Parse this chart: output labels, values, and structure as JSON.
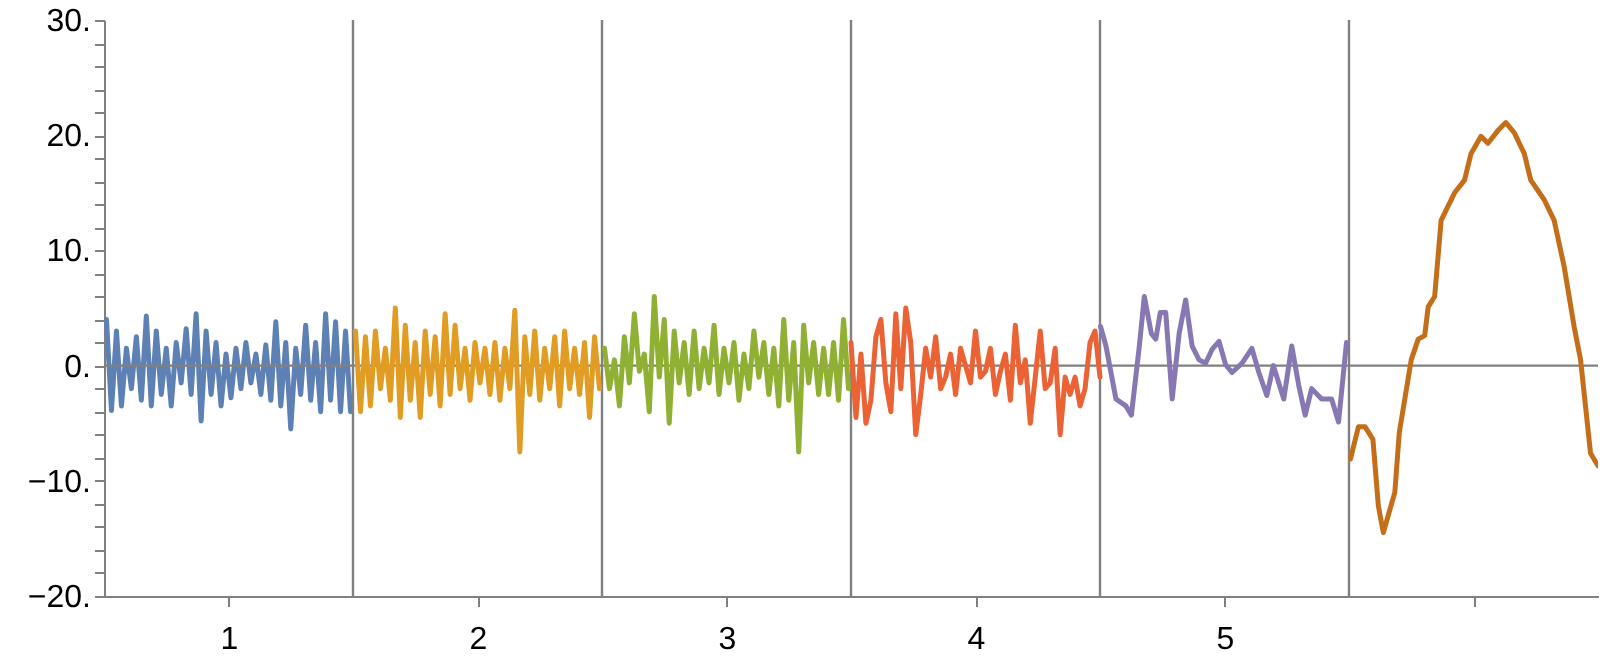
{
  "chart_data": {
    "type": "line",
    "xlim": [
      0,
      6
    ],
    "xticks": [
      {
        "value": 0.5,
        "label": "1"
      },
      {
        "value": 1.5,
        "label": "2"
      },
      {
        "value": 2.5,
        "label": "3"
      },
      {
        "value": 3.5,
        "label": "4"
      },
      {
        "value": 4.5,
        "label": "5"
      },
      {
        "value": 5.5,
        "label": null
      }
    ],
    "ylim": [
      -20,
      30
    ],
    "yticks": [
      {
        "value": -20,
        "label": "−20."
      },
      {
        "value": -18,
        "label": null
      },
      {
        "value": -16,
        "label": null
      },
      {
        "value": -14,
        "label": null
      },
      {
        "value": -12,
        "label": null
      },
      {
        "value": -10,
        "label": "−10."
      },
      {
        "value": -8,
        "label": null
      },
      {
        "value": -6,
        "label": null
      },
      {
        "value": -4,
        "label": null
      },
      {
        "value": -2,
        "label": null
      },
      {
        "value": 0,
        "label": "0."
      },
      {
        "value": 2,
        "label": null
      },
      {
        "value": 4,
        "label": null
      },
      {
        "value": 6,
        "label": null
      },
      {
        "value": 8,
        "label": null
      },
      {
        "value": 10,
        "label": "10."
      },
      {
        "value": 12,
        "label": null
      },
      {
        "value": 14,
        "label": null
      },
      {
        "value": 16,
        "label": null
      },
      {
        "value": 18,
        "label": null
      },
      {
        "value": 20,
        "label": "20."
      },
      {
        "value": 22,
        "label": null
      },
      {
        "value": 24,
        "label": null
      },
      {
        "value": 26,
        "label": null
      },
      {
        "value": 28,
        "label": null
      },
      {
        "value": 30,
        "label": "30."
      }
    ],
    "grid": false,
    "line_style": "solid",
    "marker": "none",
    "ref_lines": [
      {
        "axis": "y",
        "value": 0,
        "color": "#808080"
      },
      {
        "axis": "x",
        "value": 1,
        "color": "#808080"
      },
      {
        "axis": "x",
        "value": 2,
        "color": "#808080"
      },
      {
        "axis": "x",
        "value": 3,
        "color": "#808080"
      },
      {
        "axis": "x",
        "value": 4,
        "color": "#808080"
      },
      {
        "axis": "x",
        "value": 5,
        "color": "#808080"
      }
    ],
    "series": [
      {
        "color": "#5e81b5",
        "x": [
          0.01,
          0.03,
          0.05,
          0.07,
          0.09,
          0.11,
          0.13,
          0.15,
          0.17,
          0.19,
          0.21,
          0.23,
          0.25,
          0.27,
          0.29,
          0.31,
          0.33,
          0.35,
          0.37,
          0.39,
          0.41,
          0.43,
          0.45,
          0.47,
          0.49,
          0.51,
          0.53,
          0.55,
          0.57,
          0.59,
          0.61,
          0.63,
          0.65,
          0.67,
          0.69,
          0.71,
          0.73,
          0.75,
          0.77,
          0.79,
          0.81,
          0.83,
          0.85,
          0.87,
          0.89,
          0.91,
          0.93,
          0.95,
          0.97,
          0.99
        ],
        "values": [
          4.0,
          -3.9,
          3.0,
          -3.5,
          1.5,
          -2.0,
          2.5,
          -3.0,
          4.3,
          -3.5,
          3.0,
          -2.5,
          1.5,
          -3.5,
          2.0,
          -1.5,
          3.2,
          -2.5,
          4.5,
          -4.8,
          3.0,
          -2.5,
          2.0,
          -3.5,
          1.0,
          -2.8,
          1.5,
          -2.0,
          2.0,
          -1.5,
          1.0,
          -2.5,
          1.8,
          -3.0,
          3.8,
          -3.5,
          2.0,
          -5.5,
          1.5,
          -2.5,
          3.5,
          -3.0,
          2.0,
          -4.0,
          4.5,
          -3.0,
          3.8,
          -4.0,
          3.0,
          -4.0
        ]
      },
      {
        "color": "#e19c24",
        "x": [
          1.01,
          1.03,
          1.05,
          1.07,
          1.09,
          1.11,
          1.13,
          1.15,
          1.17,
          1.19,
          1.21,
          1.23,
          1.25,
          1.27,
          1.29,
          1.31,
          1.33,
          1.35,
          1.37,
          1.39,
          1.41,
          1.43,
          1.45,
          1.47,
          1.49,
          1.51,
          1.53,
          1.55,
          1.57,
          1.59,
          1.61,
          1.63,
          1.65,
          1.67,
          1.69,
          1.71,
          1.73,
          1.75,
          1.77,
          1.79,
          1.81,
          1.83,
          1.85,
          1.87,
          1.89,
          1.91,
          1.93,
          1.95,
          1.97,
          1.99
        ],
        "values": [
          3.0,
          -4.0,
          2.5,
          -3.5,
          3.0,
          -2.0,
          1.5,
          -3.0,
          5.0,
          -4.5,
          3.5,
          -3.0,
          2.0,
          -4.5,
          3.0,
          -2.5,
          2.5,
          -3.5,
          4.5,
          -2.5,
          3.5,
          -2.0,
          1.5,
          -3.0,
          2.0,
          -1.5,
          1.5,
          -2.5,
          2.0,
          -3.0,
          1.5,
          -2.0,
          4.8,
          -7.5,
          2.5,
          -2.5,
          3.0,
          -3.0,
          1.5,
          -2.0,
          2.5,
          -3.5,
          3.0,
          -2.0,
          1.5,
          -2.5,
          2.0,
          -4.5,
          2.5,
          -2.0
        ]
      },
      {
        "color": "#8fb032",
        "x": [
          2.01,
          2.03,
          2.05,
          2.07,
          2.09,
          2.11,
          2.13,
          2.15,
          2.17,
          2.19,
          2.21,
          2.23,
          2.25,
          2.27,
          2.29,
          2.31,
          2.33,
          2.35,
          2.37,
          2.39,
          2.41,
          2.43,
          2.45,
          2.47,
          2.49,
          2.51,
          2.53,
          2.55,
          2.57,
          2.59,
          2.61,
          2.63,
          2.65,
          2.67,
          2.69,
          2.71,
          2.73,
          2.75,
          2.77,
          2.79,
          2.81,
          2.83,
          2.85,
          2.87,
          2.89,
          2.91,
          2.93,
          2.95,
          2.97,
          2.99
        ],
        "values": [
          1.5,
          -2.0,
          0.5,
          -3.5,
          2.5,
          -1.5,
          4.5,
          -0.5,
          1.0,
          -4.0,
          6.0,
          -1.0,
          4.0,
          -5.0,
          3.0,
          -1.5,
          2.0,
          -2.5,
          3.0,
          -2.0,
          1.5,
          -1.5,
          3.5,
          -2.5,
          1.5,
          -1.5,
          2.0,
          -3.0,
          1.0,
          -2.0,
          3.0,
          -1.0,
          2.0,
          -2.5,
          1.5,
          -3.5,
          4.0,
          -3.0,
          2.0,
          -7.5,
          3.5,
          -1.5,
          2.0,
          -2.5,
          1.5,
          -2.5,
          2.0,
          -3.0,
          4.0,
          -2.0
        ]
      },
      {
        "color": "#eb6235",
        "x": [
          3.0,
          3.02,
          3.04,
          3.06,
          3.08,
          3.1,
          3.12,
          3.14,
          3.16,
          3.18,
          3.2,
          3.22,
          3.24,
          3.26,
          3.28,
          3.3,
          3.32,
          3.34,
          3.36,
          3.38,
          3.4,
          3.42,
          3.44,
          3.46,
          3.48,
          3.5,
          3.52,
          3.54,
          3.56,
          3.58,
          3.6,
          3.62,
          3.64,
          3.66,
          3.68,
          3.7,
          3.72,
          3.74,
          3.76,
          3.78,
          3.8,
          3.82,
          3.84,
          3.86,
          3.88,
          3.9,
          3.92,
          3.94,
          3.96,
          3.98,
          4.0
        ],
        "values": [
          2.0,
          -4.5,
          1.0,
          -5.0,
          -3.0,
          2.5,
          4.0,
          -1.5,
          -4.0,
          4.5,
          -2.0,
          5.0,
          2.0,
          -6.0,
          -2.5,
          1.5,
          -1.0,
          2.5,
          -2.0,
          -1.0,
          1.0,
          -2.5,
          1.5,
          0.0,
          -1.5,
          3.0,
          -1.0,
          -0.5,
          1.5,
          -2.5,
          -0.5,
          1.0,
          -3.0,
          3.5,
          -1.5,
          0.5,
          -5.0,
          -1.0,
          3.0,
          -2.0,
          -1.5,
          1.5,
          -6.0,
          -1.0,
          -2.5,
          -1.0,
          -3.5,
          -2.0,
          2.0,
          3.0,
          -1.0
        ]
      },
      {
        "color": "#8778b3",
        "x": [
          4.002,
          4.024,
          4.064,
          4.104,
          4.126,
          4.158,
          4.178,
          4.206,
          4.224,
          4.242,
          4.264,
          4.29,
          4.318,
          4.344,
          4.37,
          4.398,
          4.424,
          4.45,
          4.478,
          4.504,
          4.53,
          4.57,
          4.61,
          4.638,
          4.67,
          4.696,
          4.738,
          4.77,
          4.798,
          4.824,
          4.85,
          4.89,
          4.93,
          4.958,
          4.978,
          4.99
        ],
        "values": [
          3.4,
          1.7,
          -2.9,
          -3.5,
          -4.3,
          1.7,
          6.0,
          2.8,
          2.3,
          4.6,
          4.6,
          -2.9,
          2.8,
          5.7,
          1.7,
          0.5,
          0.2,
          1.4,
          2.1,
          0.1,
          -0.6,
          0.2,
          1.5,
          -0.6,
          -2.6,
          0,
          -2.9,
          1.7,
          -1.7,
          -4.3,
          -2.0,
          -2.9,
          -2.9,
          -4.9,
          -0.6,
          2.0
        ]
      },
      {
        "color": "#c56e1a",
        "x": [
          5.006,
          5.038,
          5.064,
          5.096,
          5.118,
          5.138,
          5.184,
          5.202,
          5.25,
          5.278,
          5.304,
          5.318,
          5.344,
          5.37,
          5.424,
          5.464,
          5.49,
          5.53,
          5.558,
          5.598,
          5.63,
          5.664,
          5.704,
          5.73,
          5.784,
          5.824,
          5.864,
          5.904,
          5.93,
          5.97,
          6.0
        ],
        "values": [
          -8.1,
          -5.3,
          -5.3,
          -6.4,
          -12.2,
          -14.5,
          -11.0,
          -5.8,
          0.5,
          2.3,
          2.6,
          5.1,
          6.0,
          12.6,
          15.0,
          16.1,
          18.4,
          19.9,
          19.3,
          20.4,
          21.1,
          20.2,
          18.4,
          16.1,
          14.4,
          12.6,
          8.6,
          3.4,
          0.5,
          -7.6,
          -8.7
        ]
      }
    ]
  }
}
